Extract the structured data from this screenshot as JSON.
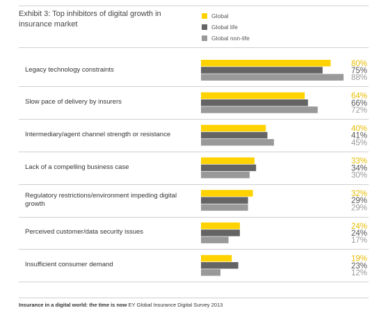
{
  "header": {
    "title": "Exhibit 3: Top inhibitors of digital growth in insurance market"
  },
  "legend": [
    {
      "label": "Global",
      "color": "#ffd200"
    },
    {
      "label": "Global life",
      "color": "#646464"
    },
    {
      "label": "Global non-life",
      "color": "#999999"
    }
  ],
  "chart_data": {
    "type": "bar",
    "orientation": "horizontal",
    "title": "Exhibit 3: Top inhibitors of digital growth in insurance market",
    "categories": [
      "Legacy technology constraints",
      "Slow pace of delivery by insurers",
      "Intermediary/agent channel strength or resistance",
      "Lack of a compelling business case",
      "Regulatory restrictions/environment impeding digital growth",
      "Perceived customer/data security issues",
      "Insufficient consumer demand"
    ],
    "series": [
      {
        "name": "Global",
        "color": "#ffd200",
        "label_color": "#e8bc00",
        "values": [
          80,
          64,
          40,
          33,
          32,
          24,
          19
        ]
      },
      {
        "name": "Global life",
        "color": "#646464",
        "label_color": "#555555",
        "values": [
          75,
          66,
          41,
          34,
          29,
          24,
          23
        ]
      },
      {
        "name": "Global non-life",
        "color": "#999999",
        "label_color": "#999999",
        "values": [
          88,
          72,
          45,
          30,
          29,
          17,
          12
        ]
      }
    ],
    "value_suffix": "%",
    "xlim": [
      0,
      100
    ],
    "legend_position": "top"
  },
  "footer": {
    "source_bold": "Insurance in a digital world: the time is now",
    "source_rest": " EY Global Insurance Digital Survey 2013"
  }
}
